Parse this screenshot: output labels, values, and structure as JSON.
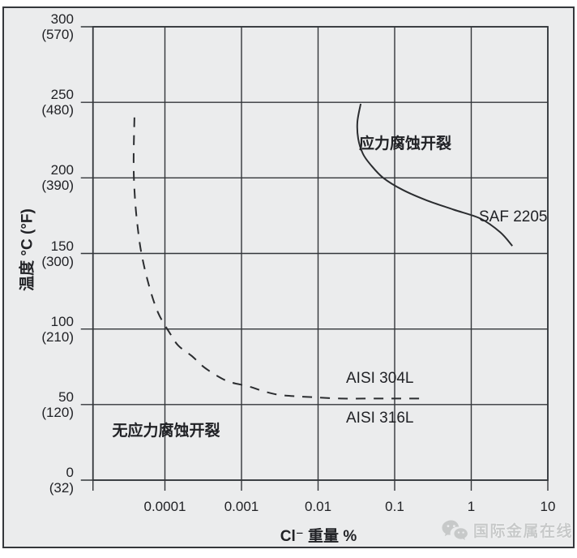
{
  "figure": {
    "colors": {
      "background": "#ebeced",
      "frame": "#34373b",
      "line": "#2b2d30",
      "grid": "#33363a",
      "text": "#212226",
      "watermark": "#c7c9c9"
    }
  },
  "chart_data": {
    "type": "line",
    "x_scale": "log",
    "grid": true,
    "xlabel": "Cl⁻ 重量 %",
    "ylabel": "温度 °C (°F)",
    "xlim": [
      1.15e-05,
      10
    ],
    "ylim": [
      0,
      300
    ],
    "x_ticks": [
      0.0001,
      0.001,
      0.01,
      0.1,
      1,
      10
    ],
    "x_tick_labels": [
      "0.0001",
      "0.001",
      "0.01",
      "0.1",
      "1",
      "10"
    ],
    "y_ticks": [
      {
        "t": 300,
        "c": "300",
        "f": "(570)"
      },
      {
        "t": 250,
        "c": "250",
        "f": "(480)"
      },
      {
        "t": 200,
        "c": "200",
        "f": "(390)"
      },
      {
        "t": 150,
        "c": "150",
        "f": "(300)"
      },
      {
        "t": 100,
        "c": "100",
        "f": "(210)"
      },
      {
        "t": 50,
        "c": "50",
        "f": "(120)"
      },
      {
        "t": 0,
        "c": "0",
        "f": "(32)"
      }
    ],
    "series": [
      {
        "name": "SAF 2205",
        "line_style": "solid",
        "points": [
          [
            0.036,
            249
          ],
          [
            0.0326,
            237
          ],
          [
            0.0334,
            226
          ],
          [
            0.0385,
            216
          ],
          [
            0.048,
            209
          ],
          [
            0.071,
            200
          ],
          [
            0.128,
            192
          ],
          [
            0.266,
            185
          ],
          [
            0.59,
            179
          ],
          [
            1.33,
            173
          ],
          [
            2.39,
            164
          ],
          [
            3.44,
            155
          ]
        ]
      },
      {
        "name": "AISI 304L / AISI 316L",
        "line_style": "dashed",
        "points": [
          [
            4e-05,
            240
          ],
          [
            3.9e-05,
            212
          ],
          [
            4e-05,
            192
          ],
          [
            4.3e-05,
            172
          ],
          [
            4.9e-05,
            151
          ],
          [
            6.1e-05,
            130
          ],
          [
            8.1e-05,
            111
          ],
          [
            0.000117,
            97
          ],
          [
            0.00015,
            89
          ],
          [
            0.000226,
            82
          ],
          [
            0.00032,
            75
          ],
          [
            0.00048,
            69
          ],
          [
            0.0007,
            65
          ],
          [
            0.00125,
            62
          ],
          [
            0.0019,
            59
          ],
          [
            0.003,
            56.5
          ],
          [
            0.005,
            55.5
          ],
          [
            0.0078,
            55
          ],
          [
            0.02,
            54
          ],
          [
            0.05,
            54
          ],
          [
            0.11,
            54
          ],
          [
            0.21,
            54
          ]
        ]
      }
    ],
    "annotations": [
      {
        "id": "region-scc",
        "text": "应力腐蚀开裂",
        "x": 0.137,
        "y": 225
      },
      {
        "id": "region-no-scc",
        "text": "无应力腐蚀开裂",
        "x": 0.000104,
        "y": 35
      },
      {
        "id": "series-saf",
        "text": "SAF 2205",
        "x": 3.2,
        "y": 174
      },
      {
        "id": "series-304l",
        "text": "AISI 304L",
        "x": 0.065,
        "y": 67
      },
      {
        "id": "series-316l",
        "text": "AISI 316L",
        "x": 0.065,
        "y": 41
      }
    ]
  },
  "watermark": {
    "text": "国际金属在线",
    "icon": "wechat-icon"
  }
}
